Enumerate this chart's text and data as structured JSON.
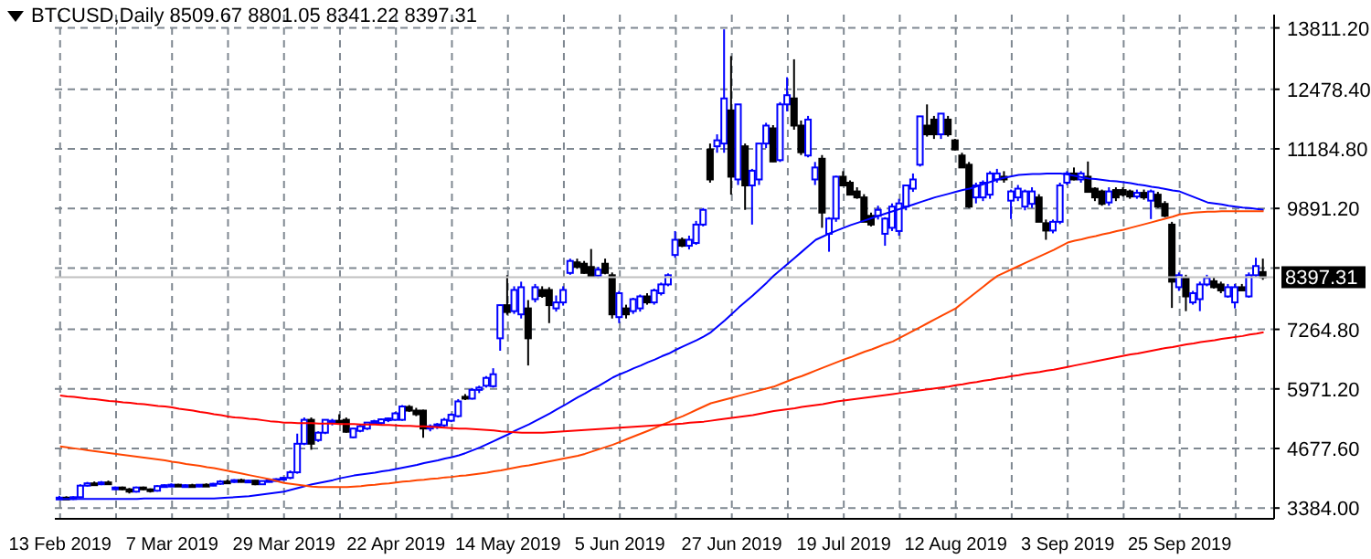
{
  "chart_data": {
    "type": "candlestick",
    "title": "BTCUSD,Daily 8509.67 8801.05 8341.22 8397.31",
    "categories": [
      "13 Feb 2019",
      null,
      null,
      null,
      null,
      null,
      null,
      null,
      null,
      null,
      null,
      null,
      null,
      null,
      null,
      null,
      "7 Mar 2019",
      null,
      null,
      null,
      null,
      null,
      null,
      null,
      null,
      null,
      null,
      null,
      null,
      null,
      null,
      null,
      "29 Mar 2019",
      null,
      null,
      null,
      null,
      null,
      null,
      null,
      null,
      null,
      null,
      null,
      null,
      null,
      null,
      null,
      "22 Apr 2019",
      null,
      null,
      null,
      null,
      null,
      null,
      null,
      null,
      null,
      null,
      null,
      null,
      null,
      null,
      null,
      "14 May 2019",
      null,
      null,
      null,
      null,
      null,
      null,
      null,
      null,
      null,
      null,
      null,
      null,
      null,
      null,
      null,
      "5 Jun 2019",
      null,
      null,
      null,
      null,
      null,
      null,
      null,
      null,
      null,
      null,
      null,
      null,
      null,
      null,
      null,
      "27 Jun 2019",
      null,
      null,
      null,
      null,
      null,
      null,
      null,
      null,
      null,
      null,
      null,
      null,
      null,
      null,
      null,
      "19 Jul 2019",
      null,
      null,
      null,
      null,
      null,
      null,
      null,
      null,
      null,
      null,
      null,
      null,
      null,
      null,
      null,
      "12 Aug 2019",
      null,
      null,
      null,
      null,
      null,
      null,
      null,
      null,
      null,
      null,
      null,
      null,
      null,
      null,
      null,
      "3 Sep 2019",
      null,
      null,
      null,
      null,
      null,
      null,
      null,
      null,
      null,
      null,
      null,
      null,
      null,
      null,
      null,
      "25 Sep 2019",
      null,
      null,
      null,
      null,
      null,
      null,
      null,
      null,
      null,
      null,
      null,
      null
    ],
    "ohlc": [
      [
        3600,
        3650,
        3570,
        3610
      ],
      [
        3610,
        3640,
        3580,
        3600
      ],
      [
        3600,
        3640,
        3560,
        3620
      ],
      [
        3620,
        3900,
        3600,
        3870
      ],
      [
        3870,
        3950,
        3850,
        3920
      ],
      [
        3920,
        3960,
        3870,
        3900
      ],
      [
        3900,
        3970,
        3880,
        3940
      ],
      [
        3940,
        3980,
        3890,
        3910
      ],
      [
        3800,
        3850,
        3780,
        3830
      ],
      [
        3830,
        3850,
        3770,
        3790
      ],
      [
        3790,
        3820,
        3700,
        3740
      ],
      [
        3740,
        3850,
        3720,
        3830
      ],
      [
        3830,
        3850,
        3770,
        3790
      ],
      [
        3790,
        3810,
        3720,
        3760
      ],
      [
        3760,
        3880,
        3740,
        3860
      ],
      [
        3860,
        3900,
        3830,
        3880
      ],
      [
        3880,
        3920,
        3840,
        3890
      ],
      [
        3890,
        3910,
        3850,
        3870
      ],
      [
        3870,
        3900,
        3830,
        3880
      ],
      [
        3880,
        3910,
        3840,
        3870
      ],
      [
        3870,
        3900,
        3840,
        3890
      ],
      [
        3890,
        3920,
        3860,
        3880
      ],
      [
        3880,
        3930,
        3860,
        3910
      ],
      [
        3910,
        3990,
        3890,
        3960
      ],
      [
        3960,
        4000,
        3920,
        3950
      ],
      [
        3950,
        4010,
        3930,
        3990
      ],
      [
        3990,
        4020,
        3940,
        3960
      ],
      [
        3960,
        4000,
        3930,
        3980
      ],
      [
        3980,
        3990,
        3880,
        3900
      ],
      [
        3900,
        3980,
        3890,
        3970
      ],
      [
        3970,
        4010,
        3940,
        3990
      ],
      [
        3990,
        4030,
        3960,
        4010
      ],
      [
        4010,
        4060,
        3980,
        4040
      ],
      [
        4040,
        4200,
        4010,
        4160
      ],
      [
        4160,
        5000,
        4130,
        4780
      ],
      [
        4780,
        5350,
        4750,
        5300
      ],
      [
        5300,
        5350,
        4650,
        4780
      ],
      [
        4860,
        5050,
        4820,
        5020
      ],
      [
        5020,
        5310,
        4990,
        5300
      ],
      [
        5240,
        5320,
        5180,
        5280
      ],
      [
        5280,
        5420,
        5200,
        5250
      ],
      [
        5300,
        5350,
        5020,
        5040
      ],
      [
        4920,
        5120,
        4900,
        5110
      ],
      [
        5060,
        5200,
        5030,
        5160
      ],
      [
        5110,
        5250,
        5080,
        5240
      ],
      [
        5240,
        5300,
        5200,
        5270
      ],
      [
        5230,
        5330,
        5200,
        5310
      ],
      [
        5310,
        5350,
        5250,
        5330
      ],
      [
        5300,
        5470,
        5280,
        5440
      ],
      [
        5300,
        5620,
        5280,
        5590
      ],
      [
        5580,
        5620,
        5470,
        5500
      ],
      [
        5500,
        5560,
        5380,
        5420
      ],
      [
        5500,
        5520,
        4910,
        5110
      ],
      [
        5110,
        5200,
        5050,
        5160
      ],
      [
        5160,
        5230,
        5100,
        5200
      ],
      [
        5180,
        5340,
        5150,
        5300
      ],
      [
        5280,
        5440,
        5250,
        5410
      ],
      [
        5380,
        5750,
        5350,
        5700
      ],
      [
        5800,
        5860,
        5730,
        5760
      ],
      [
        5760,
        5990,
        5740,
        5950
      ],
      [
        5950,
        6040,
        5880,
        6000
      ],
      [
        6040,
        6250,
        6000,
        6210
      ],
      [
        6030,
        6420,
        6000,
        6290
      ],
      [
        7070,
        7800,
        6800,
        7790
      ],
      [
        7790,
        8440,
        7580,
        7640
      ],
      [
        7660,
        8200,
        7600,
        8120
      ],
      [
        7590,
        8300,
        7500,
        8180
      ],
      [
        7720,
        7900,
        6480,
        7070
      ],
      [
        7920,
        8250,
        7850,
        8180
      ],
      [
        8120,
        8200,
        7950,
        7990
      ],
      [
        8120,
        8180,
        7400,
        7790
      ],
      [
        7720,
        8000,
        7650,
        7850
      ],
      [
        7850,
        8200,
        7780,
        8120
      ],
      [
        8490,
        8800,
        8450,
        8750
      ],
      [
        8720,
        8800,
        8580,
        8620
      ],
      [
        8690,
        8750,
        8470,
        8490
      ],
      [
        8620,
        9010,
        8400,
        8420
      ],
      [
        8430,
        8620,
        8380,
        8560
      ],
      [
        8690,
        8800,
        8460,
        8490
      ],
      [
        8440,
        8500,
        7500,
        7590
      ],
      [
        7530,
        8100,
        7400,
        8050
      ],
      [
        7720,
        7800,
        7500,
        7590
      ],
      [
        7660,
        7950,
        7600,
        7920
      ],
      [
        7720,
        8020,
        7650,
        7980
      ],
      [
        7980,
        8050,
        7800,
        7850
      ],
      [
        7850,
        8150,
        7800,
        8110
      ],
      [
        8050,
        8280,
        8000,
        8240
      ],
      [
        8240,
        8480,
        8200,
        8440
      ],
      [
        8880,
        9400,
        8820,
        9210
      ],
      [
        9210,
        9260,
        9050,
        9080
      ],
      [
        9080,
        9300,
        9000,
        9210
      ],
      [
        9140,
        9620,
        9100,
        9540
      ],
      [
        9540,
        9900,
        9500,
        9860
      ],
      [
        11170,
        11300,
        10450,
        10520
      ],
      [
        11240,
        11500,
        11100,
        11370
      ],
      [
        11300,
        13780,
        11100,
        12280
      ],
      [
        12020,
        13200,
        10190,
        10580
      ],
      [
        10520,
        12150,
        10400,
        12150
      ],
      [
        11240,
        11300,
        9860,
        10390
      ],
      [
        10390,
        10750,
        9540,
        10710
      ],
      [
        10520,
        11300,
        10400,
        11300
      ],
      [
        11300,
        11750,
        11200,
        11690
      ],
      [
        11630,
        11700,
        10900,
        10910
      ],
      [
        10940,
        12200,
        10900,
        12150
      ],
      [
        12150,
        12740,
        12000,
        12350
      ],
      [
        12280,
        13130,
        11600,
        11690
      ],
      [
        11690,
        11800,
        11050,
        11110
      ],
      [
        11040,
        11900,
        11000,
        11820
      ],
      [
        10520,
        10900,
        10400,
        10780
      ],
      [
        10970,
        11050,
        9470,
        9800
      ],
      [
        9340,
        9700,
        8950,
        9670
      ],
      [
        9670,
        10600,
        9600,
        10580
      ],
      [
        10580,
        10700,
        10390,
        10390
      ],
      [
        10450,
        10500,
        10190,
        10190
      ],
      [
        10260,
        10350,
        10100,
        10130
      ],
      [
        10130,
        10200,
        9600,
        9600
      ],
      [
        9730,
        9800,
        9500,
        9540
      ],
      [
        9730,
        9950,
        9650,
        9860
      ],
      [
        9340,
        9700,
        9080,
        9670
      ],
      [
        9470,
        10000,
        9400,
        9930
      ],
      [
        9400,
        10100,
        9300,
        10000
      ],
      [
        9930,
        10400,
        9850,
        10390
      ],
      [
        10320,
        10650,
        10250,
        10520
      ],
      [
        10840,
        11900,
        10800,
        11890
      ],
      [
        11690,
        12150,
        11450,
        11500
      ],
      [
        11820,
        11900,
        11400,
        11500
      ],
      [
        11500,
        11950,
        11400,
        11950
      ],
      [
        11820,
        11900,
        11450,
        11500
      ],
      [
        11370,
        11400,
        11150,
        11170
      ],
      [
        11040,
        11100,
        10780,
        10780
      ],
      [
        10840,
        10900,
        9900,
        9930
      ],
      [
        10130,
        10450,
        10000,
        10390
      ],
      [
        10130,
        10500,
        10050,
        10450
      ],
      [
        10190,
        10700,
        10100,
        10650
      ],
      [
        10520,
        10750,
        10450,
        10650
      ],
      [
        10580,
        10700,
        10450,
        10520
      ],
      [
        10060,
        10300,
        9660,
        10260
      ],
      [
        10130,
        10400,
        10050,
        10320
      ],
      [
        9930,
        10300,
        9850,
        10260
      ],
      [
        9990,
        10350,
        9900,
        10260
      ],
      [
        10130,
        10200,
        9600,
        9600
      ],
      [
        9570,
        9650,
        9210,
        9410
      ],
      [
        9410,
        9650,
        9350,
        9600
      ],
      [
        9600,
        10450,
        9550,
        10390
      ],
      [
        10450,
        10700,
        10400,
        10650
      ],
      [
        10650,
        10780,
        10500,
        10520
      ],
      [
        10520,
        10700,
        10450,
        10650
      ],
      [
        10580,
        10910,
        10250,
        10250
      ],
      [
        10320,
        10350,
        10050,
        10130
      ],
      [
        10260,
        10300,
        9950,
        9990
      ],
      [
        10020,
        10350,
        9950,
        10260
      ],
      [
        10290,
        10350,
        10050,
        10130
      ],
      [
        10290,
        10350,
        10150,
        10190
      ],
      [
        10260,
        10300,
        10100,
        10150
      ],
      [
        10150,
        10300,
        10100,
        10230
      ],
      [
        10230,
        10300,
        10080,
        10130
      ],
      [
        10060,
        10300,
        9660,
        10260
      ],
      [
        10190,
        10250,
        9900,
        9930
      ],
      [
        9990,
        10050,
        9700,
        9730
      ],
      [
        9540,
        9600,
        7730,
        8300
      ],
      [
        8180,
        8500,
        8100,
        8440
      ],
      [
        8380,
        8450,
        7660,
        7980
      ],
      [
        7850,
        8100,
        7800,
        8050
      ],
      [
        7920,
        8300,
        7660,
        8240
      ],
      [
        8240,
        8450,
        8200,
        8380
      ],
      [
        8310,
        8400,
        8150,
        8180
      ],
      [
        8240,
        8300,
        8050,
        8110
      ],
      [
        7980,
        8250,
        7950,
        8180
      ],
      [
        7850,
        8250,
        7720,
        8180
      ],
      [
        8180,
        8250,
        8100,
        8110
      ],
      [
        7980,
        8500,
        7950,
        8440
      ],
      [
        8440,
        8820,
        8400,
        8640
      ],
      [
        8509.67,
        8801.05,
        8341.22,
        8397.31
      ]
    ],
    "series": [
      {
        "type": "line",
        "color": "#0000ff",
        "values": [
          3580,
          3580,
          3580,
          3580,
          3580,
          3580,
          3580,
          3580,
          3580,
          3580,
          3580,
          3580,
          3590,
          3590,
          3590,
          3590,
          3590,
          3590,
          3590,
          3590,
          3590,
          3590,
          3590,
          3600,
          3610,
          3620,
          3630,
          3640,
          3660,
          3680,
          3700,
          3720,
          3740,
          3780,
          3820,
          3860,
          3900,
          3930,
          3960,
          3990,
          4030,
          4060,
          4090,
          4110,
          4130,
          4150,
          4180,
          4200,
          4230,
          4260,
          4290,
          4320,
          4360,
          4390,
          4420,
          4460,
          4490,
          4530,
          4580,
          4640,
          4700,
          4770,
          4840,
          4910,
          4980,
          5060,
          5130,
          5200,
          5280,
          5360,
          5440,
          5530,
          5610,
          5700,
          5790,
          5870,
          5960,
          6040,
          6130,
          6220,
          6290,
          6350,
          6420,
          6480,
          6550,
          6610,
          6680,
          6740,
          6820,
          6890,
          6960,
          7030,
          7110,
          7200,
          7330,
          7460,
          7600,
          7740,
          7870,
          8000,
          8140,
          8280,
          8430,
          8560,
          8690,
          8820,
          8950,
          9080,
          9210,
          9280,
          9350,
          9410,
          9470,
          9530,
          9580,
          9630,
          9680,
          9730,
          9780,
          9830,
          9880,
          9930,
          9980,
          10030,
          10080,
          10130,
          10170,
          10210,
          10250,
          10290,
          10320,
          10370,
          10420,
          10470,
          10520,
          10560,
          10590,
          10620,
          10630,
          10640,
          10640,
          10650,
          10650,
          10650,
          10630,
          10600,
          10570,
          10540,
          10530,
          10510,
          10490,
          10480,
          10460,
          10440,
          10410,
          10390,
          10360,
          10340,
          10310,
          10280,
          10260,
          10200,
          10140,
          10080,
          10020,
          10000,
          9980,
          9950,
          9930,
          9910,
          9900,
          9880,
          9860
        ]
      },
      {
        "type": "line",
        "color": "#ff4500",
        "values": [
          4720,
          4700,
          4680,
          4660,
          4640,
          4620,
          4600,
          4580,
          4560,
          4540,
          4520,
          4500,
          4480,
          4460,
          4440,
          4420,
          4390,
          4370,
          4340,
          4320,
          4300,
          4270,
          4250,
          4220,
          4190,
          4160,
          4130,
          4100,
          4070,
          4040,
          4010,
          3970,
          3930,
          3910,
          3890,
          3870,
          3850,
          3840,
          3840,
          3840,
          3840,
          3840,
          3850,
          3860,
          3880,
          3890,
          3910,
          3920,
          3940,
          3960,
          3970,
          3990,
          4000,
          4020,
          4030,
          4050,
          4060,
          4080,
          4090,
          4110,
          4130,
          4150,
          4180,
          4200,
          4230,
          4260,
          4290,
          4310,
          4340,
          4370,
          4400,
          4430,
          4460,
          4490,
          4520,
          4560,
          4610,
          4660,
          4710,
          4760,
          4820,
          4880,
          4940,
          5000,
          5060,
          5120,
          5190,
          5250,
          5320,
          5380,
          5450,
          5520,
          5590,
          5660,
          5700,
          5740,
          5780,
          5820,
          5860,
          5900,
          5940,
          5980,
          6020,
          6080,
          6140,
          6200,
          6250,
          6310,
          6370,
          6430,
          6490,
          6550,
          6610,
          6660,
          6720,
          6780,
          6830,
          6890,
          6950,
          7000,
          7080,
          7160,
          7240,
          7320,
          7400,
          7480,
          7560,
          7640,
          7720,
          7840,
          7960,
          8080,
          8200,
          8320,
          8430,
          8500,
          8570,
          8640,
          8710,
          8780,
          8850,
          8920,
          8990,
          9070,
          9150,
          9190,
          9220,
          9260,
          9290,
          9330,
          9360,
          9400,
          9430,
          9470,
          9510,
          9550,
          9590,
          9630,
          9670,
          9710,
          9760,
          9780,
          9800,
          9810,
          9820,
          9820,
          9830,
          9830,
          9830,
          9830,
          9830,
          9830,
          9830
        ]
      },
      {
        "type": "line",
        "color": "#ff0000",
        "values": [
          5830,
          5810,
          5800,
          5780,
          5760,
          5750,
          5730,
          5710,
          5700,
          5680,
          5670,
          5650,
          5640,
          5620,
          5600,
          5590,
          5570,
          5540,
          5520,
          5500,
          5470,
          5450,
          5420,
          5400,
          5370,
          5350,
          5340,
          5320,
          5310,
          5290,
          5270,
          5260,
          5240,
          5240,
          5230,
          5230,
          5230,
          5220,
          5220,
          5220,
          5210,
          5210,
          5210,
          5200,
          5200,
          5200,
          5190,
          5190,
          5180,
          5170,
          5170,
          5160,
          5160,
          5150,
          5140,
          5130,
          5120,
          5110,
          5110,
          5100,
          5090,
          5080,
          5070,
          5050,
          5040,
          5030,
          5020,
          5020,
          5020,
          5020,
          5030,
          5040,
          5050,
          5060,
          5070,
          5080,
          5090,
          5100,
          5110,
          5120,
          5130,
          5140,
          5150,
          5160,
          5170,
          5180,
          5190,
          5200,
          5210,
          5220,
          5240,
          5250,
          5260,
          5280,
          5300,
          5320,
          5340,
          5360,
          5380,
          5400,
          5430,
          5460,
          5490,
          5510,
          5530,
          5550,
          5580,
          5600,
          5620,
          5640,
          5670,
          5700,
          5720,
          5740,
          5760,
          5780,
          5800,
          5820,
          5840,
          5860,
          5880,
          5900,
          5920,
          5940,
          5960,
          5980,
          6000,
          6020,
          6050,
          6070,
          6100,
          6120,
          6150,
          6170,
          6200,
          6220,
          6250,
          6270,
          6300,
          6320,
          6340,
          6370,
          6390,
          6420,
          6450,
          6480,
          6510,
          6540,
          6570,
          6600,
          6630,
          6660,
          6690,
          6720,
          6740,
          6770,
          6800,
          6830,
          6860,
          6880,
          6910,
          6940,
          6960,
          6990,
          7010,
          7030,
          7060,
          7080,
          7100,
          7120,
          7150,
          7170,
          7200
        ]
      }
    ],
    "ylim": [
      3150,
      14100
    ],
    "yticks": [
      {
        "value": 3384,
        "label": "3384.00"
      },
      {
        "value": 4677.6,
        "label": "4677.60"
      },
      {
        "value": 5971.2,
        "label": "5971.20"
      },
      {
        "value": 7264.8,
        "label": "7264.80"
      },
      {
        "value": 8597.6,
        "label": null
      },
      {
        "value": 9891.2,
        "label": "9891.20"
      },
      {
        "value": 11184.8,
        "label": "11184.80"
      },
      {
        "value": 12478.4,
        "label": "12478.40"
      },
      {
        "value": 13811.2,
        "label": "13811.20"
      }
    ],
    "ref_lines": [
      {
        "axis": "y",
        "value": 8397.31,
        "label": "8397.31",
        "color": "#c0c0c0"
      }
    ],
    "grid": true
  }
}
